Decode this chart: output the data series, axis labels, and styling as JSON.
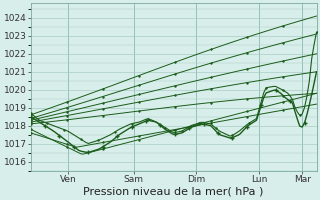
{
  "bg_color": "#cce8e0",
  "plot_bg_color": "#d8eeea",
  "grid_color": "#aaccc4",
  "line_color": "#1a5c1a",
  "ylim": [
    1015.5,
    1024.8
  ],
  "yticks": [
    1016,
    1017,
    1018,
    1019,
    1020,
    1021,
    1022,
    1023,
    1024
  ],
  "xlabel": "Pression niveau de la mer( hPa )",
  "xlabel_fontsize": 8,
  "tick_fontsize": 6.5,
  "day_labels": [
    "Ven",
    "Sam",
    "Dim",
    "Lun",
    "Mar"
  ],
  "day_positions": [
    0.13,
    0.36,
    0.58,
    0.8,
    0.95
  ],
  "xlim": [
    0.0,
    1.0
  ]
}
